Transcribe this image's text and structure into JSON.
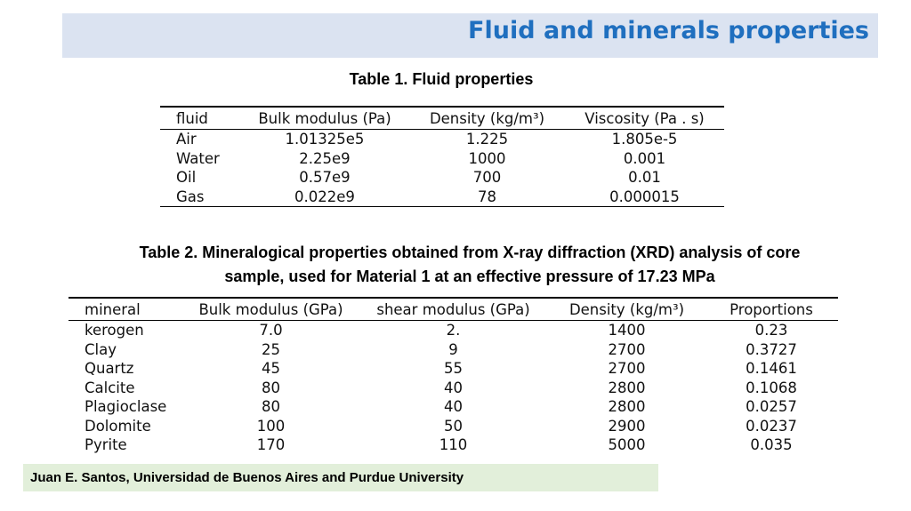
{
  "slide": {
    "title": "Fluid and minerals properties"
  },
  "table1": {
    "caption": "Table 1. Fluid properties",
    "headers": [
      "fluid",
      "Bulk modulus (Pa)",
      "Density (kg/m³)",
      "Viscosity (Pa . s)"
    ],
    "rows": [
      [
        "Air",
        "1.01325e5",
        "1.225",
        "1.805e-5"
      ],
      [
        "Water",
        "2.25e9",
        "1000",
        "0.001"
      ],
      [
        "Oil",
        "0.57e9",
        "700",
        "0.01"
      ],
      [
        "Gas",
        "0.022e9",
        "78",
        "0.000015"
      ]
    ]
  },
  "table2": {
    "caption_line1": "Table 2. Mineralogical properties obtained from X-ray diffraction (XRD) analysis of core",
    "caption_line2": "sample, used for Material 1 at an effective pressure of 17.23 MPa",
    "headers": [
      "mineral",
      "Bulk modulus (GPa)",
      "shear modulus (GPa)",
      "Density (kg/m³)",
      "Proportions"
    ],
    "rows": [
      [
        "kerogen",
        "7.0",
        "2.",
        "1400",
        "0.23"
      ],
      [
        "Clay",
        "25",
        "9",
        "2700",
        "0.3727"
      ],
      [
        "Quartz",
        "45",
        "55",
        "2700",
        "0.1461"
      ],
      [
        "Calcite",
        "80",
        "40",
        "2800",
        "0.1068"
      ],
      [
        "Plagioclase",
        "80",
        "40",
        "2800",
        "0.0257"
      ],
      [
        "Dolomite",
        "100",
        "50",
        "2900",
        "0.0237"
      ],
      [
        "Pyrite",
        "170",
        "110",
        "5000",
        "0.035"
      ]
    ]
  },
  "footer": {
    "text": "Juan E. Santos, Universidad de Buenos Aires and Purdue University"
  }
}
